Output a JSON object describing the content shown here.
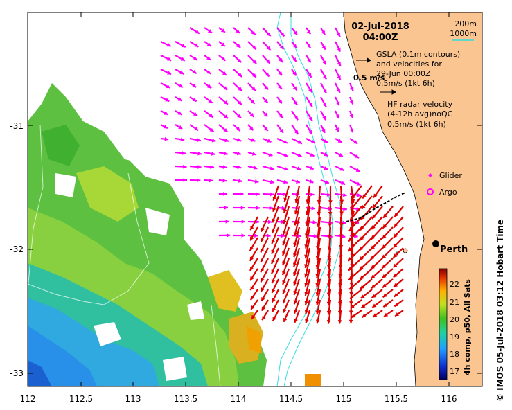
{
  "map": {
    "date": "02-Jul-2018",
    "time": "04:00Z",
    "lon_ticks": [
      "112",
      "112.5",
      "113",
      "113.5",
      "114",
      "114.5",
      "115",
      "115.5",
      "116"
    ],
    "lat_ticks": [
      "-31",
      "-32",
      "-33"
    ],
    "legend": {
      "depth_200": "200m",
      "depth_1000": "1000m",
      "gsla_line1": "GSLA (0.1m contours)",
      "gsla_line2": "and velocities for",
      "gsla_line3": "29-Jun 00:00Z",
      "gsla_scale": "0.5m/s (1kt 6h)",
      "ref_arrow": "0.5 m/s",
      "hf_line1": "HF radar velocity",
      "hf_line2": "(4-12h avg)noQC",
      "hf_scale": "0.5m/s (1kt 6h)",
      "glider": "Glider",
      "argo": "Argo"
    },
    "city": "Perth",
    "colorbar": {
      "ticks": [
        "22",
        "21",
        "20",
        "19",
        "18",
        "17"
      ],
      "label": "4h comp, p50, All Sats"
    },
    "credit": "© IMOS 05-Jul-2018 03:12 Hobart Time",
    "colors": {
      "land": "#fbc592",
      "gsla_arrow": "#ff00ff",
      "hf_arrow": "#e00000",
      "contour": "#33dddd"
    }
  }
}
